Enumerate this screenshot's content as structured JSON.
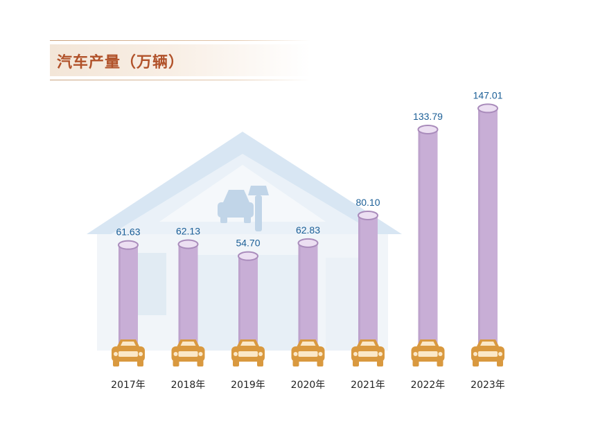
{
  "chart_data": {
    "type": "bar",
    "title": "汽车产量（万辆）",
    "categories": [
      "2017年",
      "2018年",
      "2019年",
      "2020年",
      "2021年",
      "2022年",
      "2023年"
    ],
    "series": [
      {
        "values": [
          61.63,
          62.13,
          54.7,
          62.83,
          80.1,
          133.79,
          147.01
        ]
      }
    ],
    "value_labels": [
      "61.63",
      "62.13",
      "54.70",
      "62.83",
      "80.10",
      "133.79",
      "147.01"
    ],
    "xlabel": "",
    "ylabel": "",
    "ylim": [
      0,
      160
    ],
    "grid": false,
    "legend": "none",
    "colors": {
      "bar": "#c8aed6",
      "bar_edge": "#a98bbb",
      "bar_top": "#ecdff2",
      "value_label": "#1a5e96",
      "car": "#d9993f",
      "title": "#b1522a",
      "house": "#cfe0ee"
    },
    "decoration_icons": [
      "house-icon",
      "car-icon",
      "wrench-icon"
    ]
  }
}
